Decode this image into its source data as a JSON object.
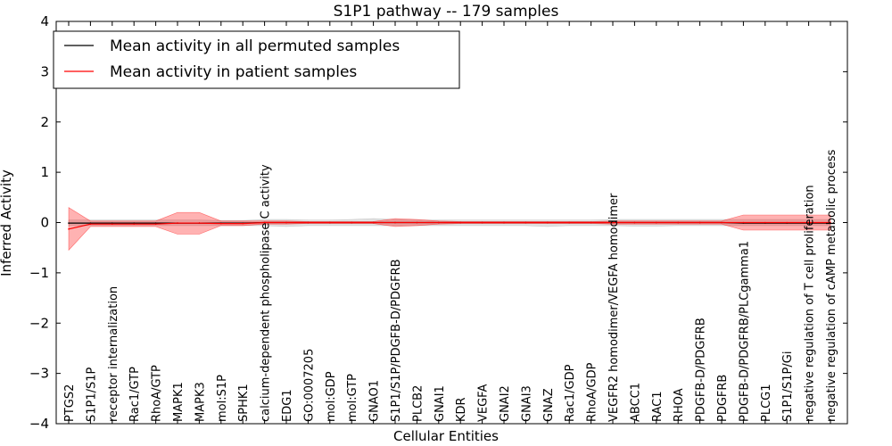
{
  "chart_data": {
    "type": "line",
    "title": "S1P1 pathway -- 179 samples",
    "xlabel": "Cellular Entities",
    "ylabel": "Inferred Activity",
    "ylim": [
      -4,
      4
    ],
    "yticks": [
      -4,
      -3,
      -2,
      -1,
      0,
      1,
      2,
      3,
      4
    ],
    "ytick_labels": [
      "−4",
      "−3",
      "−2",
      "−1",
      "0",
      "1",
      "2",
      "3",
      "4"
    ],
    "grid": false,
    "legend_position": "top-left",
    "categories": [
      "PTGS2",
      "S1P1/S1P",
      "receptor internalization",
      "Rac1/GTP",
      "RhoA/GTP",
      "MAPK1",
      "MAPK3",
      "mol:S1P",
      "SPHK1",
      "calcium-dependent phospholipase C activity",
      "EDG1",
      "GO:0007205",
      "mol:GDP",
      "mol:GTP",
      "GNAO1",
      "S1P1/S1P/PDGFB-D/PDGFRB",
      "PLCB2",
      "GNAI1",
      "KDR",
      "VEGFA",
      "GNAI2",
      "GNAI3",
      "GNAZ",
      "Rac1/GDP",
      "RhoA/GDP",
      "VEGFR2 homodimer/VEGFA homodimer",
      "ABCC1",
      "RAC1",
      "RHOA",
      "PDGFB-D/PDGFRB",
      "PDGFRB",
      "PDGFB-D/PDGFRB/PLCgamma1",
      "PLCG1",
      "S1P1/S1P/Gi",
      "negative regulation of T cell proliferation",
      "negative regulation of cAMP metabolic process"
    ],
    "series": [
      {
        "name": "Mean activity in all permuted samples",
        "color": "#000000",
        "values": [
          -0.01,
          -0.01,
          -0.01,
          -0.01,
          -0.01,
          -0.01,
          -0.01,
          -0.01,
          -0.01,
          0.0,
          0.0,
          0.0,
          0.0,
          0.0,
          0.0,
          0.0,
          0.0,
          0.0,
          0.0,
          0.0,
          0.0,
          0.0,
          0.0,
          0.0,
          0.0,
          0.0,
          0.0,
          0.0,
          0.0,
          0.0,
          0.0,
          -0.01,
          -0.01,
          -0.01,
          -0.01,
          -0.01
        ],
        "band_upper": [
          0.05,
          0.05,
          0.05,
          0.05,
          0.05,
          0.05,
          0.05,
          0.04,
          0.04,
          0.06,
          0.06,
          0.05,
          0.05,
          0.06,
          0.08,
          0.06,
          0.05,
          0.05,
          0.05,
          0.05,
          0.05,
          0.05,
          0.05,
          0.05,
          0.05,
          0.06,
          0.06,
          0.06,
          0.06,
          0.06,
          0.06,
          0.06,
          0.06,
          0.06,
          0.06,
          0.06
        ],
        "band_lower": [
          -0.06,
          -0.06,
          -0.06,
          -0.06,
          -0.06,
          -0.06,
          -0.06,
          -0.06,
          -0.06,
          -0.06,
          -0.08,
          -0.06,
          -0.06,
          -0.06,
          -0.06,
          -0.06,
          -0.06,
          -0.06,
          -0.06,
          -0.06,
          -0.06,
          -0.06,
          -0.08,
          -0.06,
          -0.06,
          -0.06,
          -0.07,
          -0.07,
          -0.06,
          -0.06,
          -0.06,
          -0.06,
          -0.06,
          -0.06,
          -0.06,
          -0.06
        ]
      },
      {
        "name": "Mean activity in patient samples",
        "color": "#ff0000",
        "values": [
          -0.13,
          -0.03,
          -0.03,
          -0.03,
          -0.03,
          -0.01,
          -0.01,
          -0.02,
          -0.02,
          0.0,
          0.0,
          0.0,
          0.0,
          0.0,
          0.0,
          0.0,
          0.0,
          0.0,
          0.0,
          0.0,
          0.0,
          0.0,
          0.0,
          0.0,
          0.0,
          0.0,
          0.0,
          0.0,
          0.0,
          0.0,
          0.0,
          0.0,
          0.0,
          0.0,
          0.0,
          0.0
        ],
        "band_upper": [
          0.3,
          0.03,
          0.03,
          0.03,
          0.03,
          0.2,
          0.2,
          0.03,
          0.03,
          0.03,
          0.03,
          0.02,
          0.02,
          0.02,
          0.02,
          0.08,
          0.06,
          0.03,
          0.02,
          0.02,
          0.02,
          0.02,
          0.02,
          0.02,
          0.02,
          0.03,
          0.03,
          0.03,
          0.03,
          0.03,
          0.03,
          0.15,
          0.15,
          0.15,
          0.15,
          0.15
        ],
        "band_lower": [
          -0.55,
          -0.08,
          -0.08,
          -0.08,
          -0.08,
          -0.23,
          -0.23,
          -0.06,
          -0.06,
          -0.03,
          -0.03,
          -0.02,
          -0.02,
          -0.02,
          -0.02,
          -0.08,
          -0.06,
          -0.03,
          -0.02,
          -0.02,
          -0.02,
          -0.02,
          -0.02,
          -0.02,
          -0.02,
          -0.03,
          -0.03,
          -0.03,
          -0.03,
          -0.03,
          -0.03,
          -0.15,
          -0.15,
          -0.15,
          -0.15,
          -0.15
        ]
      }
    ]
  }
}
